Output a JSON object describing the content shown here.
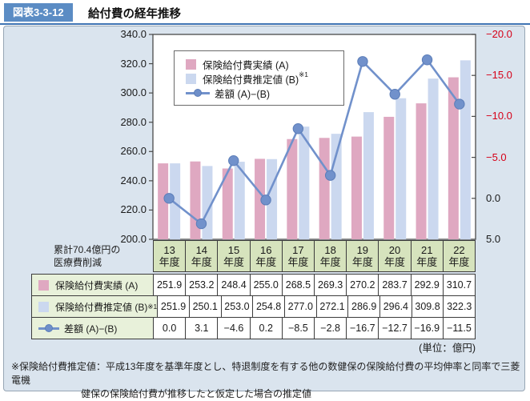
{
  "header": {
    "badge": "図表3-3-12",
    "title": "給付費の経年推移"
  },
  "chart_data": {
    "type": "bar+line",
    "categories": [
      "13年度",
      "14年度",
      "15年度",
      "16年度",
      "17年度",
      "18年度",
      "19年度",
      "20年度",
      "21年度",
      "22年度"
    ],
    "series": [
      {
        "name": "保険給付費実績 (A)",
        "type": "bar",
        "axis": "left",
        "color": "#dfa8c1",
        "values": [
          251.9,
          253.2,
          248.4,
          255.0,
          268.5,
          269.3,
          270.2,
          283.7,
          292.9,
          310.7
        ]
      },
      {
        "name": "保険給付費推定値 (B)※1",
        "type": "bar",
        "axis": "left",
        "color": "#cbd8ef",
        "values": [
          251.9,
          250.1,
          253.0,
          254.8,
          277.0,
          272.1,
          286.9,
          296.4,
          309.8,
          322.3
        ]
      },
      {
        "name": "差額 (A)−(B)",
        "type": "line",
        "axis": "right",
        "color": "#7191cb",
        "marker_stroke": "#5b7db8",
        "values": [
          0.0,
          3.1,
          -4.6,
          0.2,
          -8.5,
          -2.8,
          -16.7,
          -12.7,
          -16.9,
          -11.5
        ]
      }
    ],
    "left_axis": {
      "min": 200,
      "max": 340,
      "step": 20,
      "labels": [
        "340.0",
        "320.0",
        "300.0",
        "280.0",
        "260.0",
        "240.0",
        "220.0",
        "200.0"
      ]
    },
    "right_axis": {
      "min": -20,
      "max": 5,
      "step": 5,
      "inverted": true,
      "labels": [
        "−20.0",
        "−15.0",
        "−10.0",
        "−5.0",
        "0.0",
        "5.0"
      ],
      "negative_color": "#d60018",
      "positive_color": "#1a1a1a"
    },
    "grid": false,
    "legend_position": "top-left",
    "plot_border_color": "#4a4a4a"
  },
  "legend": {
    "items": [
      {
        "swatch": "pink-square",
        "label": "保険給付費実績 (A)",
        "sup": ""
      },
      {
        "swatch": "blue-square",
        "label": "保険給付費推定値 (B)",
        "sup": "※1"
      },
      {
        "swatch": "line-marker",
        "label": "差額 (A)−(B)",
        "sup": ""
      }
    ]
  },
  "annotation": {
    "line1": "累計70.4億円の",
    "line2": "医療費削減"
  },
  "table": {
    "year_suffix": "年度",
    "rows": [
      {
        "icon": "pink-square",
        "label": "保険給付費実績 (A)",
        "sup": "",
        "values": [
          "251.9",
          "253.2",
          "248.4",
          "255.0",
          "268.5",
          "269.3",
          "270.2",
          "283.7",
          "292.9",
          "310.7"
        ]
      },
      {
        "icon": "blue-square",
        "label": "保険給付費推定値 (B)",
        "sup": "※1",
        "values": [
          "251.9",
          "250.1",
          "253.0",
          "254.8",
          "277.0",
          "272.1",
          "286.9",
          "296.4",
          "309.8",
          "322.3"
        ]
      },
      {
        "icon": "line-marker",
        "label": "差額 (A)−(B)",
        "sup": "",
        "values": [
          "0.0",
          "3.1",
          "−4.6",
          "0.2",
          "−8.5",
          "−2.8",
          "−16.7",
          "−12.7",
          "−16.9",
          "−11.5"
        ]
      }
    ]
  },
  "unit_label": "(単位：億円)",
  "footnote": {
    "line1": "※保険給付費推定値：平成13年度を基準年度とし、特退制度を有する他の数健保の保険給付費の平均伸率と同率で三菱電機",
    "line2": "健保の保険給付費が推移したと仮定した場合の推定値"
  },
  "colors": {
    "panel_background": "#dae4ee",
    "badge_background": "#5b8cc4",
    "header_rule": "#3f74b3",
    "year_cell_background": "#d6e3bd",
    "label_cell_background": "#e8f1da",
    "table_border": "#3c3c3c"
  }
}
